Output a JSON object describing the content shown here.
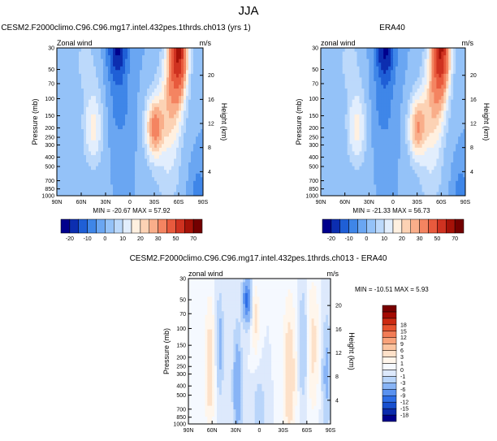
{
  "figure": {
    "title": "JJA",
    "colors": {
      "abs_palette": [
        "#00008c",
        "#0c2eb0",
        "#1f5fd6",
        "#3f86e8",
        "#6aa6f2",
        "#94c2f8",
        "#bcd9fb",
        "#e2eefd",
        "#fff0e0",
        "#fcd2b4",
        "#f9ae8a",
        "#f48461",
        "#e85a3d",
        "#cf3220",
        "#a51208",
        "#730000"
      ],
      "diff_palette": [
        "#00008c",
        "#0b2bad",
        "#1850cf",
        "#2e6ee6",
        "#5a92f0",
        "#88b4f6",
        "#b9d5fa",
        "#dde9fc",
        "#f5f9ff",
        "#fff6ec",
        "#fde1c9",
        "#fbc4a0",
        "#f8a27a",
        "#f27c56",
        "#e6532f",
        "#cc2a12",
        "#a30a02",
        "#780000"
      ]
    }
  },
  "chart_data": [
    {
      "id": "panel-model",
      "type": "heatmap",
      "title": "CESM2.F2000climo.C96.C96.mg17.intel.432pes.1thrds.ch013 (yrs 1)",
      "subtitle_left": "Zonal wind",
      "subtitle_right": "m/s",
      "variable": "Zonal wind",
      "units": "m/s",
      "xlabel": "",
      "ylabel": "Pressure (mb)",
      "ylabel_right": "Height (km)",
      "x_ticks": [
        "90N",
        "60N",
        "30N",
        "0",
        "30S",
        "60S",
        "90S"
      ],
      "x_lat_range": [
        90,
        -90
      ],
      "y_ticks": [
        30,
        50,
        70,
        100,
        150,
        200,
        250,
        300,
        400,
        500,
        700,
        850,
        1000
      ],
      "y_range": [
        1000,
        30
      ],
      "y_scale": "log",
      "height_ticks": [
        4,
        8,
        12,
        16,
        20
      ],
      "stats": "MIN = -20.67   MAX = 57.92",
      "min": -20.67,
      "max": 57.92,
      "features": {
        "nh_jet": {
          "lat": 45,
          "p": 200,
          "speed": 17
        },
        "easterly_jet": {
          "lat": 15,
          "p": 30,
          "speed": -20.67
        },
        "sh_jet": {
          "lat": -30,
          "p": 200,
          "speed": 32
        },
        "sh_polar_night_jet": {
          "lat": -60,
          "p": 30,
          "speed": 57.92
        }
      },
      "colorbar": {
        "levels": [
          -25,
          -20,
          -15,
          -10,
          -5,
          0,
          5,
          10,
          15,
          20,
          25,
          30,
          40,
          50,
          60,
          70,
          80
        ],
        "labels": [
          "-20",
          "-10",
          "0",
          "10",
          "20",
          "30",
          "50",
          "70"
        ],
        "label_levels": [
          -20,
          -10,
          0,
          10,
          20,
          30,
          50,
          70
        ],
        "position": "bottom"
      }
    },
    {
      "id": "panel-obs",
      "type": "heatmap",
      "title": "ERA40",
      "subtitle_left": "zonal wind",
      "subtitle_right": "m/s",
      "variable": "zonal wind",
      "units": "m/s",
      "xlabel": "",
      "ylabel": "Pressure (mb)",
      "ylabel_right": "Height (km)",
      "x_ticks": [
        "90N",
        "60N",
        "30N",
        "0",
        "30S",
        "60S",
        "90S"
      ],
      "x_lat_range": [
        90,
        -90
      ],
      "y_ticks": [
        30,
        50,
        70,
        100,
        150,
        200,
        250,
        300,
        400,
        500,
        700,
        850,
        1000
      ],
      "y_range": [
        1000,
        30
      ],
      "y_scale": "log",
      "height_ticks": [
        4,
        8,
        12,
        16,
        20
      ],
      "stats": "MIN = -21.33   MAX = 56.73",
      "min": -21.33,
      "max": 56.73,
      "features": {
        "nh_jet": {
          "lat": 45,
          "p": 200,
          "speed": 17
        },
        "easterly_jet": {
          "lat": 10,
          "p": 30,
          "speed": -21.33
        },
        "sh_jet": {
          "lat": -30,
          "p": 200,
          "speed": 28
        },
        "sh_polar_night_jet": {
          "lat": -60,
          "p": 30,
          "speed": 56.73
        }
      },
      "colorbar": {
        "levels": [
          -25,
          -20,
          -15,
          -10,
          -5,
          0,
          5,
          10,
          15,
          20,
          25,
          30,
          40,
          50,
          60,
          70,
          80
        ],
        "labels": [
          "-20",
          "-10",
          "0",
          "10",
          "20",
          "30",
          "50",
          "70"
        ],
        "label_levels": [
          -20,
          -10,
          0,
          10,
          20,
          30,
          50,
          70
        ],
        "position": "bottom"
      }
    },
    {
      "id": "panel-diff",
      "type": "heatmap",
      "title": "CESM2.F2000climo.C96.C96.mg17.intel.432pes.1thrds.ch013 - ERA40",
      "subtitle_left": "zonal wind",
      "subtitle_right": "m/s",
      "variable": "zonal wind difference",
      "units": "m/s",
      "xlabel": "",
      "ylabel": "Pressure (mb)",
      "ylabel_right": "Height (km)",
      "x_ticks": [
        "90N",
        "60N",
        "30N",
        "0",
        "30S",
        "60S",
        "90S"
      ],
      "x_lat_range": [
        90,
        -90
      ],
      "y_ticks": [
        30,
        50,
        70,
        100,
        150,
        200,
        250,
        300,
        400,
        500,
        700,
        850,
        1000
      ],
      "y_range": [
        1000,
        30
      ],
      "y_scale": "log",
      "height_ticks": [
        4,
        8,
        12,
        16,
        20
      ],
      "stats": "MIN = -10.51   MAX =  5.93",
      "min": -10.51,
      "max": 5.93,
      "colorbar": {
        "levels": [
          -21,
          -18,
          -15,
          -12,
          -9,
          -6,
          -3,
          -1,
          0,
          1,
          3,
          6,
          9,
          12,
          15,
          18,
          21
        ],
        "labels": [
          "18",
          "15",
          "12",
          "9",
          "6",
          "3",
          "1",
          "0",
          "-1",
          "-3",
          "-6",
          "-9",
          "-12",
          "-15",
          "-18"
        ],
        "label_levels": [
          18,
          15,
          12,
          9,
          6,
          3,
          1,
          0,
          -1,
          -3,
          -6,
          -9,
          -12,
          -15,
          -18
        ],
        "position": "right"
      }
    }
  ]
}
